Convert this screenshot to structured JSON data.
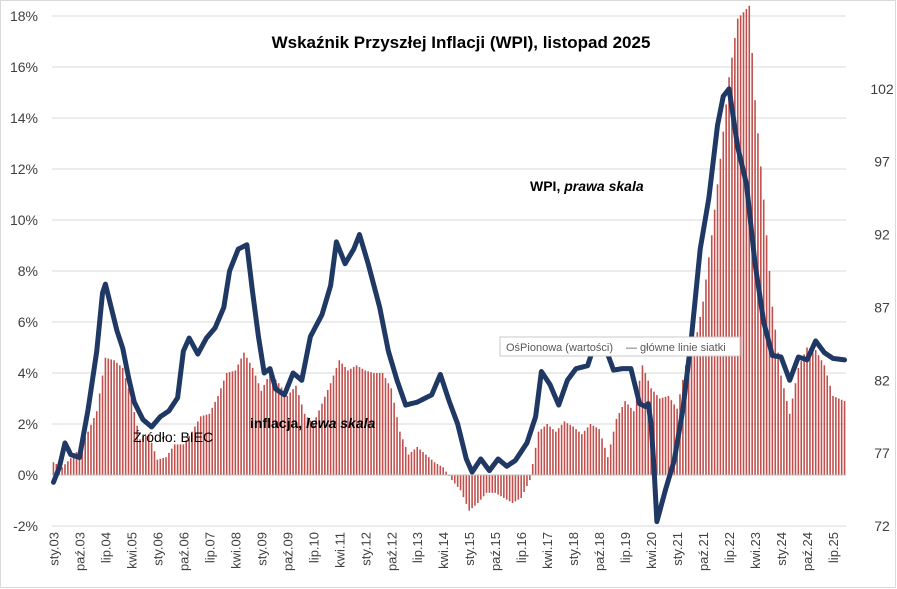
{
  "chart_data": {
    "type": "bar+line",
    "title": "Wskaźnik Przyszłej Inflacji (WPI), listopad 2025",
    "left_axis": {
      "ticks": [
        "-2%",
        "0%",
        "2%",
        "4%",
        "6%",
        "8%",
        "10%",
        "12%",
        "14%",
        "16%",
        "18%"
      ],
      "ylim": [
        -2,
        18
      ]
    },
    "right_axis": {
      "ticks": [
        "72",
        "77",
        "82",
        "87",
        "92",
        "97",
        "102"
      ],
      "ylim": [
        72,
        107
      ]
    },
    "x_ticks": [
      "sty.03",
      "paź.03",
      "lip.04",
      "kwi.05",
      "sty.06",
      "paź.06",
      "lip.07",
      "kwi.08",
      "sty.09",
      "paź.09",
      "lip.10",
      "kwi.11",
      "sty.12",
      "paź.12",
      "lip.13",
      "kwi.14",
      "sty.15",
      "paź.15",
      "lip.16",
      "kwi.17",
      "sty.18",
      "paź.18",
      "lip.19",
      "kwi.20",
      "sty.21",
      "paź.21",
      "lip.22",
      "kwi.23",
      "sty.24",
      "paź.24",
      "lip.25"
    ],
    "x_range": [
      "2003-01",
      "2025-11"
    ],
    "grid": true,
    "series": [
      {
        "name": "inflacja",
        "axis": "left",
        "style": "bar",
        "color": "#c0504d",
        "keypoints": [
          [
            "2003-01",
            0.5
          ],
          [
            "2003-04",
            0.3
          ],
          [
            "2003-09",
            0.9
          ],
          [
            "2004-01",
            1.7
          ],
          [
            "2004-04",
            2.5
          ],
          [
            "2004-07",
            4.6
          ],
          [
            "2004-10",
            4.5
          ],
          [
            "2005-01",
            4.2
          ],
          [
            "2005-04",
            3.0
          ],
          [
            "2005-07",
            1.4
          ],
          [
            "2005-10",
            1.6
          ],
          [
            "2006-01",
            0.6
          ],
          [
            "2006-04",
            0.7
          ],
          [
            "2006-07",
            1.2
          ],
          [
            "2006-10",
            1.2
          ],
          [
            "2007-01",
            1.7
          ],
          [
            "2007-04",
            2.3
          ],
          [
            "2007-07",
            2.4
          ],
          [
            "2007-10",
            3.1
          ],
          [
            "2008-01",
            4.0
          ],
          [
            "2008-04",
            4.1
          ],
          [
            "2008-07",
            4.8
          ],
          [
            "2008-10",
            4.2
          ],
          [
            "2009-01",
            3.3
          ],
          [
            "2009-04",
            4.0
          ],
          [
            "2009-07",
            3.6
          ],
          [
            "2009-10",
            3.1
          ],
          [
            "2010-01",
            3.5
          ],
          [
            "2010-04",
            2.4
          ],
          [
            "2010-07",
            2.0
          ],
          [
            "2010-10",
            2.8
          ],
          [
            "2011-01",
            3.6
          ],
          [
            "2011-04",
            4.5
          ],
          [
            "2011-07",
            4.1
          ],
          [
            "2011-10",
            4.3
          ],
          [
            "2012-01",
            4.1
          ],
          [
            "2012-04",
            4.0
          ],
          [
            "2012-07",
            4.0
          ],
          [
            "2012-10",
            3.4
          ],
          [
            "2013-01",
            1.7
          ],
          [
            "2013-04",
            0.8
          ],
          [
            "2013-07",
            1.1
          ],
          [
            "2013-10",
            0.8
          ],
          [
            "2014-01",
            0.5
          ],
          [
            "2014-04",
            0.3
          ],
          [
            "2014-07",
            -0.2
          ],
          [
            "2014-10",
            -0.6
          ],
          [
            "2015-01",
            -1.4
          ],
          [
            "2015-04",
            -1.1
          ],
          [
            "2015-07",
            -0.7
          ],
          [
            "2015-10",
            -0.7
          ],
          [
            "2016-01",
            -0.9
          ],
          [
            "2016-04",
            -1.1
          ],
          [
            "2016-07",
            -0.9
          ],
          [
            "2016-10",
            -0.2
          ],
          [
            "2017-01",
            1.7
          ],
          [
            "2017-04",
            2.0
          ],
          [
            "2017-07",
            1.7
          ],
          [
            "2017-10",
            2.1
          ],
          [
            "2018-01",
            1.9
          ],
          [
            "2018-04",
            1.6
          ],
          [
            "2018-07",
            2.0
          ],
          [
            "2018-10",
            1.8
          ],
          [
            "2019-01",
            0.7
          ],
          [
            "2019-04",
            2.2
          ],
          [
            "2019-07",
            2.9
          ],
          [
            "2019-10",
            2.5
          ],
          [
            "2020-01",
            4.3
          ],
          [
            "2020-04",
            3.4
          ],
          [
            "2020-07",
            3.0
          ],
          [
            "2020-10",
            3.1
          ],
          [
            "2021-01",
            2.6
          ],
          [
            "2021-04",
            4.3
          ],
          [
            "2021-07",
            5.0
          ],
          [
            "2021-10",
            6.8
          ],
          [
            "2022-01",
            9.4
          ],
          [
            "2022-04",
            12.4
          ],
          [
            "2022-07",
            15.6
          ],
          [
            "2022-10",
            17.9
          ],
          [
            "2023-02",
            18.4
          ],
          [
            "2023-04",
            14.7
          ],
          [
            "2023-07",
            10.8
          ],
          [
            "2023-10",
            6.6
          ],
          [
            "2024-01",
            3.9
          ],
          [
            "2024-04",
            2.4
          ],
          [
            "2024-07",
            4.2
          ],
          [
            "2024-10",
            5.0
          ],
          [
            "2025-01",
            4.9
          ],
          [
            "2025-04",
            4.3
          ],
          [
            "2025-07",
            3.1
          ],
          [
            "2025-11",
            2.9
          ]
        ]
      },
      {
        "name": "WPI",
        "axis": "right",
        "style": "line",
        "color": "#1f3864",
        "keypoints": [
          [
            "2003-01",
            75.0
          ],
          [
            "2003-03",
            76.0
          ],
          [
            "2003-05",
            77.7
          ],
          [
            "2003-07",
            76.9
          ],
          [
            "2003-10",
            76.7
          ],
          [
            "2004-01",
            80.0
          ],
          [
            "2004-04",
            84.0
          ],
          [
            "2004-06",
            88.0
          ],
          [
            "2004-07",
            88.6
          ],
          [
            "2004-09",
            87.0
          ],
          [
            "2004-11",
            85.4
          ],
          [
            "2005-01",
            84.2
          ],
          [
            "2005-03",
            82.2
          ],
          [
            "2005-05",
            80.5
          ],
          [
            "2005-08",
            79.3
          ],
          [
            "2005-11",
            78.8
          ],
          [
            "2006-02",
            79.5
          ],
          [
            "2006-05",
            79.9
          ],
          [
            "2006-08",
            80.8
          ],
          [
            "2006-10",
            84.0
          ],
          [
            "2006-12",
            84.9
          ],
          [
            "2007-03",
            83.8
          ],
          [
            "2007-06",
            84.9
          ],
          [
            "2007-09",
            85.6
          ],
          [
            "2007-12",
            87.0
          ],
          [
            "2008-02",
            89.5
          ],
          [
            "2008-05",
            91.0
          ],
          [
            "2008-08",
            91.3
          ],
          [
            "2008-10",
            88.0
          ],
          [
            "2008-12",
            85.0
          ],
          [
            "2009-02",
            82.5
          ],
          [
            "2009-04",
            82.8
          ],
          [
            "2009-06",
            81.4
          ],
          [
            "2009-09",
            81.0
          ],
          [
            "2009-12",
            82.5
          ],
          [
            "2010-03",
            82.0
          ],
          [
            "2010-06",
            85.0
          ],
          [
            "2010-10",
            86.5
          ],
          [
            "2011-01",
            88.5
          ],
          [
            "2011-03",
            91.5
          ],
          [
            "2011-06",
            90.0
          ],
          [
            "2011-09",
            91.0
          ],
          [
            "2011-11",
            92.0
          ],
          [
            "2012-02",
            90.0
          ],
          [
            "2012-06",
            87.0
          ],
          [
            "2012-09",
            84.0
          ],
          [
            "2012-12",
            82.0
          ],
          [
            "2013-03",
            80.3
          ],
          [
            "2013-07",
            80.5
          ],
          [
            "2013-12",
            81.0
          ],
          [
            "2014-03",
            82.4
          ],
          [
            "2014-06",
            80.6
          ],
          [
            "2014-09",
            79.0
          ],
          [
            "2014-12",
            76.6
          ],
          [
            "2015-02",
            75.7
          ],
          [
            "2015-05",
            76.6
          ],
          [
            "2015-08",
            75.8
          ],
          [
            "2015-11",
            76.6
          ],
          [
            "2016-02",
            76.1
          ],
          [
            "2016-05",
            76.5
          ],
          [
            "2016-09",
            77.7
          ],
          [
            "2016-12",
            79.5
          ],
          [
            "2017-02",
            82.6
          ],
          [
            "2017-05",
            81.7
          ],
          [
            "2017-08",
            80.3
          ],
          [
            "2017-11",
            82.0
          ],
          [
            "2018-02",
            82.8
          ],
          [
            "2018-06",
            83.0
          ],
          [
            "2018-09",
            84.8
          ],
          [
            "2018-12",
            84.3
          ],
          [
            "2019-03",
            82.7
          ],
          [
            "2019-06",
            82.8
          ],
          [
            "2019-09",
            82.8
          ],
          [
            "2019-12",
            80.4
          ],
          [
            "2020-02",
            80.2
          ],
          [
            "2020-03",
            80.4
          ],
          [
            "2020-04",
            79.0
          ],
          [
            "2020-05",
            76.0
          ],
          [
            "2020-06",
            72.3
          ],
          [
            "2020-09",
            74.5
          ],
          [
            "2020-12",
            76.5
          ],
          [
            "2021-03",
            80.0
          ],
          [
            "2021-06",
            85.0
          ],
          [
            "2021-09",
            91.0
          ],
          [
            "2021-12",
            94.5
          ],
          [
            "2022-03",
            99.5
          ],
          [
            "2022-05",
            101.5
          ],
          [
            "2022-07",
            102.0
          ],
          [
            "2022-10",
            98.0
          ],
          [
            "2023-01",
            95.5
          ],
          [
            "2023-04",
            90.0
          ],
          [
            "2023-07",
            86.0
          ],
          [
            "2023-10",
            83.7
          ],
          [
            "2024-01",
            83.6
          ],
          [
            "2024-04",
            82.0
          ],
          [
            "2024-07",
            83.6
          ],
          [
            "2024-10",
            83.4
          ],
          [
            "2025-01",
            84.7
          ],
          [
            "2025-04",
            83.9
          ],
          [
            "2025-07",
            83.5
          ],
          [
            "2025-11",
            83.4
          ]
        ]
      }
    ],
    "annotations": {
      "source": "Źródło: BIEC",
      "wpi_label_plain": "WPI, ",
      "wpi_label_italic": "prawa skala",
      "inflation_label_plain": "inflacja, ",
      "inflation_label_italic": "lewa skala",
      "tooltip_series": "OśPionowa (wartości)",
      "tooltip_item": "— główne linie siatki"
    }
  },
  "colors": {
    "bars": "#c0504d",
    "line": "#1f3864",
    "grid": "#d9d9d9",
    "text": "#404040"
  }
}
